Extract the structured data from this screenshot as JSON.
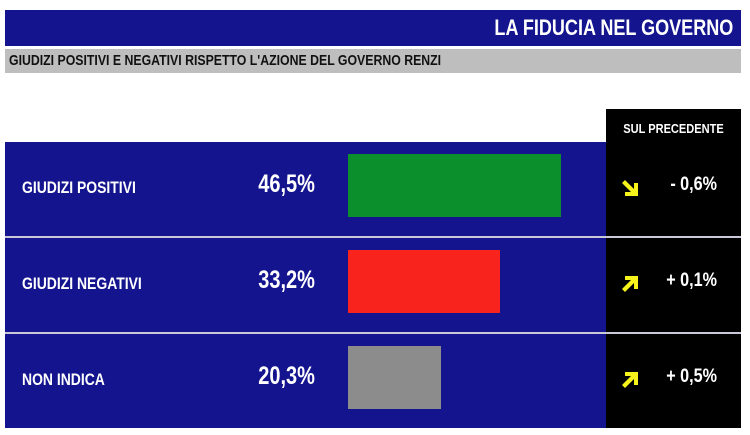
{
  "title": "LA FIDUCIA NEL GOVERNO",
  "subtitle": "GIUDIZI POSITIVI E NEGATIVI RISPETTO L'AZIONE DEL GOVERNO RENZI",
  "right_column_header": "SUL PRECEDENTE",
  "rows": [
    {
      "label": "GIUDIZI POSITIVI",
      "value_text": "46,5%",
      "change_text": "- 0,6%",
      "arrow": "arrow-down-right-icon"
    },
    {
      "label": "GIUDIZI NEGATIVI",
      "value_text": "33,2%",
      "change_text": "+ 0,1%",
      "arrow": "arrow-up-right-icon"
    },
    {
      "label": "NON INDICA",
      "value_text": "20,3%",
      "change_text": "+ 0,5%",
      "arrow": "arrow-up-right-icon"
    }
  ],
  "colors": {
    "panel": "#14148f",
    "arrow": "#f5f31b",
    "positive_bar": "#0b8f2d",
    "negative_bar": "#f7231c",
    "neutral_bar": "#8c8c8c"
  },
  "chart_data": {
    "type": "bar",
    "orientation": "horizontal",
    "categories": [
      "GIUDIZI POSITIVI",
      "GIUDIZI NEGATIVI",
      "NON INDICA"
    ],
    "values": [
      46.5,
      33.2,
      20.3
    ],
    "change_vs_previous": [
      -0.6,
      0.1,
      0.5
    ],
    "bar_colors": [
      "#0b8f2d",
      "#f7231c",
      "#8c8c8c"
    ],
    "title": "LA FIDUCIA NEL GOVERNO",
    "subtitle": "GIUDIZI POSITIVI E NEGATIVI RISPETTO L'AZIONE DEL GOVERNO RENZI",
    "xlim": [
      0,
      46.5
    ],
    "grid": false,
    "legend": "none"
  }
}
